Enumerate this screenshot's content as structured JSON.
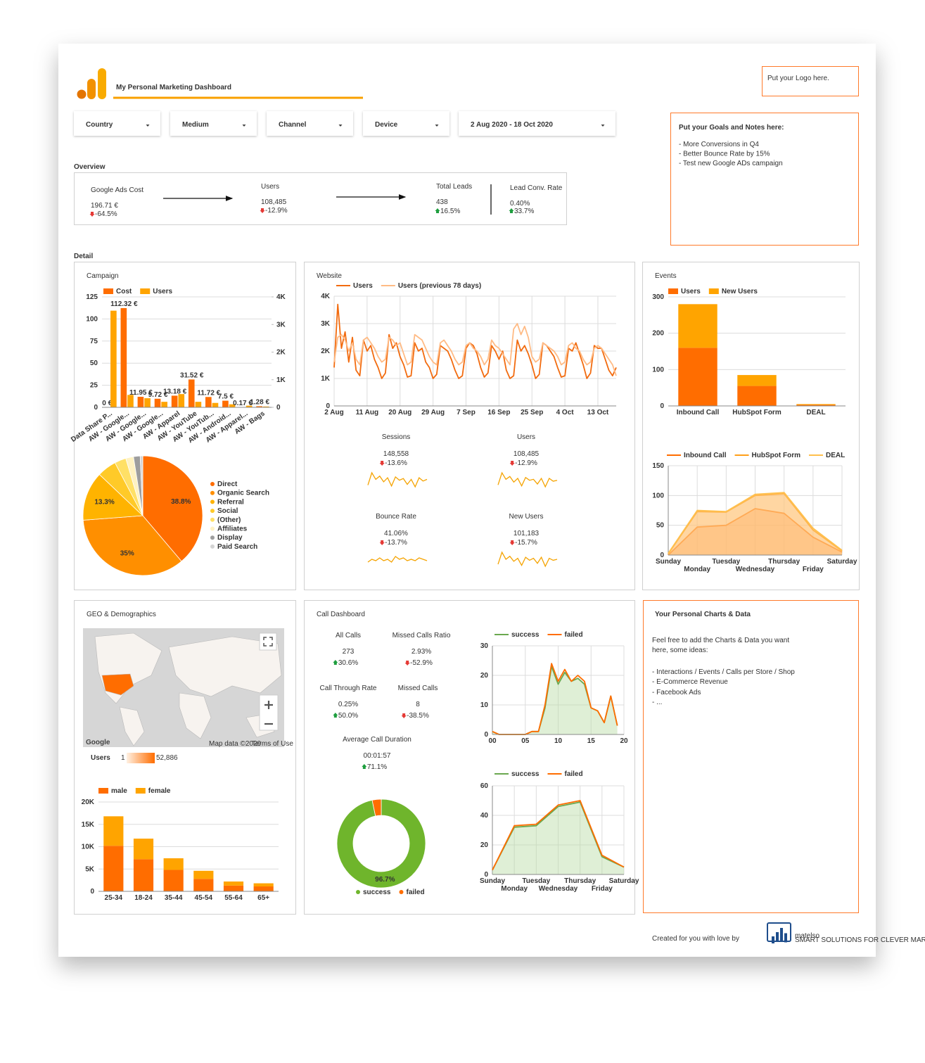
{
  "header": {
    "title": "My Personal Marketing Dashboard",
    "logo_placeholder": "Put your Logo here."
  },
  "filters": [
    "Country",
    "Medium",
    "Channel",
    "Device",
    "2 Aug 2020 - 18 Oct 2020"
  ],
  "notes": {
    "title": "Put your Goals and Notes here:",
    "items": [
      "- More Conversions in Q4",
      "- Better Bounce Rate by 15%",
      "- Test new Google ADs campaign"
    ]
  },
  "overview": {
    "title": "Overview",
    "metrics": [
      {
        "label": "Google Ads Cost",
        "value": "196.71 €",
        "change": "-64.5%"
      },
      {
        "label": "Users",
        "value": "108,485",
        "change": "-12.9%"
      },
      {
        "label": "Total Leads",
        "value": "438",
        "change": "16.5%"
      },
      {
        "label": "Lead Conv. Rate",
        "value": "0.40%",
        "change": "33.7%"
      }
    ]
  },
  "detail_title": "Detail",
  "panels": {
    "campaign": "Campaign",
    "website": "Website",
    "events": "Events",
    "geo": "GEO & Demographics",
    "calls": "Call Dashboard"
  },
  "website_scorecards": [
    {
      "label": "Sessions",
      "value": "148,558",
      "change": "-13.6%",
      "spark": [
        1900,
        3400,
        2600,
        3000,
        2300,
        2800,
        1800,
        2900,
        2500,
        2700,
        2000,
        2600,
        1700,
        2800,
        2400,
        2600
      ]
    },
    {
      "label": "Users",
      "value": "108,485",
      "change": "-12.9%",
      "spark": [
        1400,
        2700,
        2000,
        2300,
        1700,
        2100,
        1300,
        2200,
        1900,
        2000,
        1500,
        2100,
        1200,
        2100,
        1800,
        1900
      ]
    },
    {
      "label": "Bounce Rate",
      "value": "41.06%",
      "change": "-13.7%",
      "spark": [
        40,
        42,
        41,
        43,
        41,
        42,
        40,
        44,
        42,
        43,
        41,
        42,
        41,
        43,
        42,
        41
      ]
    },
    {
      "label": "New Users",
      "value": "101,183",
      "change": "-15.7%",
      "spark": [
        1300,
        2500,
        1800,
        2100,
        1600,
        1900,
        1200,
        2000,
        1700,
        1900,
        1400,
        2000,
        1100,
        1900,
        1700,
        1800
      ]
    }
  ],
  "call_scorecards": [
    {
      "label": "All Calls",
      "value": "273",
      "change": "30.6%"
    },
    {
      "label": "Missed Calls Ratio",
      "value": "2.93%",
      "change": "-52.9%"
    },
    {
      "label": "Call Through Rate",
      "value": "0.25%",
      "change": "50.0%"
    },
    {
      "label": "Missed Calls",
      "value": "8",
      "change": "-38.5%"
    },
    {
      "label": "Average Call Duration",
      "value": "00:01:57",
      "change": "71.1%"
    }
  ],
  "map": {
    "attribution": "Google",
    "map_data": "Map data ©2020",
    "terms": "Terms of Use",
    "legend_label": "Users",
    "legend_min": "1",
    "legend_max": "52,886"
  },
  "personal": {
    "title": "Your Personal Charts & Data",
    "lines": [
      "Feel free to add the Charts & Data you want",
      "here, some ideas:",
      "- Interactions / Events / Calls per Store / Shop",
      "- E-Commerce Revenue",
      "- Facebook Ads",
      "- ..."
    ]
  },
  "footer": {
    "text": "Created for you with love by",
    "brand": "matelso",
    "tagline": "SMART SOLUTIONS FOR CLEVER MARKETING"
  },
  "chart_data": [
    {
      "type": "bar",
      "legend": "top",
      "grid": true,
      "categories": [
        "Data Share P...",
        "AW - Google...",
        "AW - Google...",
        "AW - Google...",
        "AW - Apparel",
        "AW - YouTube",
        "AW - YouTub...",
        "AW - Android...",
        "AW - Apparel...",
        "AW - Bags"
      ],
      "series": [
        {
          "name": "Cost",
          "color": "#ff6d00",
          "values": [
            0,
            112.32,
            11.95,
            9.72,
            13.18,
            31.52,
            11.72,
            7.5,
            0.17,
            1.28
          ],
          "value_labels": [
            "0 €",
            "112.32 €",
            "11.95 €",
            "9.72 €",
            "13.18 €",
            "31.52 €",
            "11.72 €",
            "7.5 €",
            "0.17 €",
            "1.28 €"
          ]
        },
        {
          "name": "Users",
          "color": "#ffa400",
          "axis": "y2",
          "values": [
            3500,
            450,
            330,
            200,
            480,
            200,
            160,
            110,
            60,
            30
          ]
        }
      ],
      "ylim": [
        0,
        125
      ],
      "yticks": [
        0,
        25,
        50,
        75,
        100,
        125
      ],
      "y2lim": [
        0,
        4000
      ],
      "y2ticks": [
        0,
        {
          "value": 1000,
          "label": "1K"
        },
        {
          "value": 2000,
          "label": "2K"
        },
        {
          "value": 3000,
          "label": "3K"
        },
        {
          "value": 4000,
          "label": "4K"
        }
      ]
    },
    {
      "type": "pie",
      "legend": "right",
      "categories": [
        "Direct",
        "Organic Search",
        "Referral",
        "Social",
        "(Other)",
        "Affiliates",
        "Display",
        "Paid Search"
      ],
      "values": [
        38.8,
        35,
        13.3,
        5.2,
        3.1,
        2.1,
        1.8,
        0.7
      ],
      "value_labels": [
        "38.8%",
        "35%",
        "13.3%",
        null,
        null,
        null,
        null,
        null
      ],
      "colors": [
        "#ff6d00",
        "#ff8f00",
        "#ffb300",
        "#ffca28",
        "#ffe066",
        "#fff2c2",
        "#9e9e9e",
        "#d4d4d4"
      ]
    },
    {
      "type": "line",
      "legend": "top",
      "grid": true,
      "categories": [
        "2 Aug",
        null,
        null,
        null,
        null,
        null,
        null,
        null,
        null,
        "11 Aug",
        null,
        null,
        null,
        null,
        null,
        null,
        null,
        null,
        "20 Aug",
        null,
        null,
        null,
        null,
        null,
        null,
        null,
        null,
        "29 Aug",
        null,
        null,
        null,
        null,
        null,
        null,
        null,
        null,
        "7 Sep",
        null,
        null,
        null,
        null,
        null,
        null,
        null,
        null,
        "16 Sep",
        null,
        null,
        null,
        null,
        null,
        null,
        null,
        null,
        "25 Sep",
        null,
        null,
        null,
        null,
        null,
        null,
        null,
        null,
        "4 Oct",
        null,
        null,
        null,
        null,
        null,
        null,
        null,
        null,
        "13 Oct",
        null,
        null,
        null,
        null,
        null
      ],
      "series": [
        {
          "name": "Users",
          "color": "#f26b0f",
          "values": [
            1400,
            3700,
            2100,
            2700,
            1600,
            2500,
            1300,
            1100,
            2400,
            2000,
            2200,
            1700,
            1400,
            1000,
            1200,
            2600,
            2100,
            2300,
            1800,
            1500,
            1050,
            1100,
            2300,
            2000,
            2100,
            1600,
            1400,
            1000,
            1150,
            2200,
            2100,
            2000,
            1700,
            1300,
            1000,
            1100,
            2100,
            2300,
            2200,
            1900,
            1400,
            1050,
            1200,
            2200,
            2000,
            1700,
            2000,
            1300,
            1000,
            1100,
            2400,
            2000,
            2200,
            1900,
            1500,
            1000,
            1150,
            2300,
            2200,
            2000,
            1800,
            1400,
            1050,
            1100,
            2100,
            2000,
            2300,
            1900,
            1500,
            1000,
            1200,
            2200,
            2100,
            2100,
            1700,
            1300,
            1100,
            1400
          ]
        },
        {
          "name": "Users (previous 78 days)",
          "color": "#ffbb85",
          "values": [
            1600,
            2500,
            2600,
            2400,
            2000,
            2300,
            1700,
            1500,
            2400,
            2500,
            2300,
            2100,
            1800,
            1600,
            1700,
            2500,
            2400,
            2200,
            2300,
            1900,
            1500,
            1600,
            2600,
            2500,
            2400,
            2100,
            1800,
            1600,
            1500,
            2300,
            2400,
            2200,
            2000,
            1700,
            1500,
            1600,
            2200,
            2300,
            2100,
            2000,
            1800,
            1500,
            1700,
            2400,
            2200,
            2100,
            1900,
            1700,
            1500,
            2800,
            3000,
            2600,
            2900,
            2500,
            1800,
            1600,
            1700,
            2300,
            2200,
            2100,
            2000,
            1800,
            1500,
            1600,
            2200,
            2300,
            2100,
            2000,
            1700,
            1500,
            1600,
            2100,
            2200,
            2100,
            1900,
            1700,
            1500,
            1100
          ]
        }
      ],
      "ylim": [
        0,
        4000
      ],
      "yticks": [
        0,
        {
          "value": 1000,
          "label": "1K"
        },
        {
          "value": 2000,
          "label": "2K"
        },
        {
          "value": 3000,
          "label": "3K"
        },
        {
          "value": 4000,
          "label": "4K"
        }
      ]
    },
    {
      "type": "bar",
      "stacked": true,
      "legend": "top",
      "grid": true,
      "categories": [
        "Inbound Call",
        "HubSpot Form",
        "DEAL"
      ],
      "series": [
        {
          "name": "Users",
          "color": "#ff6d00",
          "values": [
            160,
            55,
            3
          ]
        },
        {
          "name": "New Users",
          "color": "#ffa400",
          "values": [
            120,
            30,
            2
          ]
        }
      ],
      "ylim": [
        0,
        300
      ],
      "yticks": [
        0,
        100,
        200,
        300
      ]
    },
    {
      "type": "area",
      "legend": "top",
      "grid": true,
      "categories": [
        "Sunday",
        "Monday",
        "Tuesday",
        "Wednesday",
        "Thursday",
        "Friday",
        "Saturday"
      ],
      "series": [
        {
          "name": "Inbound Call",
          "color": "#ff6d00",
          "fill": "#ff8a3d",
          "values": [
            0,
            47,
            50,
            78,
            70,
            30,
            5
          ]
        },
        {
          "name": "HubSpot Form",
          "color": "#ff9f1a",
          "fill": "#ffb060",
          "values": [
            2,
            73,
            72,
            100,
            103,
            42,
            7
          ]
        },
        {
          "name": "DEAL",
          "color": "#ffc04d",
          "fill": "#ffd08a",
          "values": [
            3,
            75,
            73,
            102,
            105,
            45,
            8
          ]
        }
      ],
      "ylim": [
        0,
        150
      ],
      "yticks": [
        0,
        50,
        100,
        150
      ]
    },
    {
      "type": "bar",
      "stacked": true,
      "legend": "top",
      "grid": true,
      "categories": [
        "25-34",
        "18-24",
        "35-44",
        "45-54",
        "55-64",
        "65+"
      ],
      "series": [
        {
          "name": "male",
          "color": "#ff6d00",
          "values": [
            10200,
            7200,
            4800,
            2800,
            1300,
            1100
          ]
        },
        {
          "name": "female",
          "color": "#ffa400",
          "values": [
            6600,
            4600,
            2600,
            1800,
            900,
            700
          ]
        }
      ],
      "ylim": [
        0,
        20000
      ],
      "yticks": [
        0,
        {
          "value": 5000,
          "label": "5K"
        },
        {
          "value": 10000,
          "label": "10K"
        },
        {
          "value": 15000,
          "label": "15K"
        },
        {
          "value": 20000,
          "label": "20K"
        }
      ]
    },
    {
      "type": "pie",
      "donut": true,
      "legend": "bottom",
      "categories": [
        "success",
        "failed"
      ],
      "values": [
        96.7,
        3.3
      ],
      "value_labels": [
        "96.7%",
        null
      ],
      "colors": [
        "#6fb52c",
        "#ff6d00"
      ]
    },
    {
      "type": "area",
      "legend": "top",
      "grid": true,
      "x": [
        0,
        1,
        2,
        3,
        4,
        5,
        6,
        7,
        8,
        9,
        10,
        11,
        12,
        13,
        14,
        15,
        16,
        17,
        18,
        19
      ],
      "series": [
        {
          "name": "success",
          "color": "#6aa84f",
          "fill": "#b9dba3",
          "values": [
            1,
            0,
            0,
            0,
            0,
            0,
            1,
            1,
            9,
            23,
            17,
            21,
            18,
            19,
            17,
            9,
            8,
            4,
            13,
            3
          ]
        },
        {
          "name": "failed",
          "color": "#ff6d00",
          "values": [
            1,
            0,
            0,
            0,
            0,
            0,
            1,
            1,
            10,
            24,
            18,
            22,
            18,
            20,
            18,
            9,
            8,
            4,
            13,
            3
          ]
        }
      ],
      "xlim": [
        0,
        20
      ],
      "xticks": [
        {
          "value": 0,
          "label": "00"
        },
        {
          "value": 5,
          "label": "05"
        },
        10,
        15,
        20
      ],
      "ylim": [
        0,
        30
      ],
      "yticks": [
        0,
        10,
        20,
        30
      ]
    },
    {
      "type": "area",
      "legend": "top",
      "grid": true,
      "categories": [
        "Sunday",
        "Monday",
        "Tuesday",
        "Wednesday",
        "Thursday",
        "Friday",
        "Saturday"
      ],
      "series": [
        {
          "name": "success",
          "color": "#6aa84f",
          "fill": "#b9dba3",
          "values": [
            3,
            32,
            33,
            46,
            49,
            12,
            5
          ]
        },
        {
          "name": "failed",
          "color": "#ff6d00",
          "values": [
            3,
            33,
            34,
            47,
            50,
            13,
            5
          ]
        }
      ],
      "ylim": [
        0,
        60
      ],
      "yticks": [
        0,
        20,
        40,
        60
      ]
    }
  ]
}
